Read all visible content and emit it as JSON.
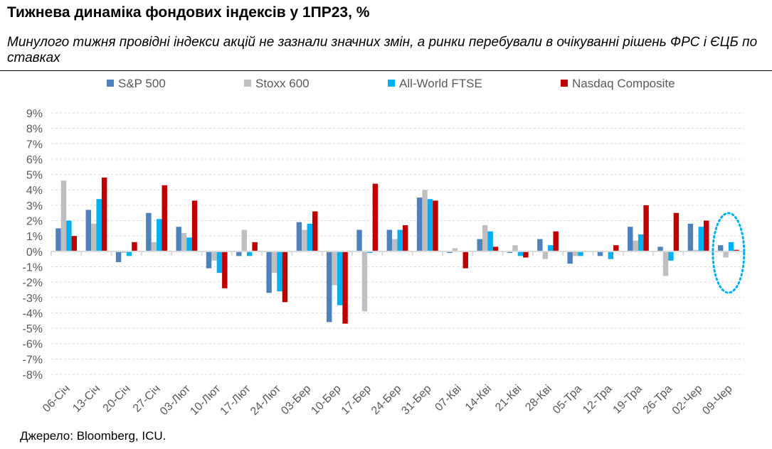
{
  "chart_data": {
    "type": "bar",
    "title": "Тижнева динаміка фондових індексів у 1ПР23, %",
    "subtitle": "Минулого тижня провідні індекси акцій не зазнали значних змін, а ринки перебували в очікуванні рішень ФРС і ЄЦБ по ставках",
    "source": "Джерело: Bloomberg, ICU.",
    "xlabel": "",
    "ylabel": "",
    "ylim": [
      -8,
      9
    ],
    "yticks": [
      9,
      8,
      7,
      6,
      5,
      4,
      3,
      2,
      1,
      0,
      -1,
      -2,
      -3,
      -4,
      -5,
      -6,
      -7,
      -8
    ],
    "ytick_suffix": "%",
    "grid": true,
    "legend_position": "top",
    "categories": [
      "06-Січ",
      "13-Січ",
      "20-Січ",
      "27-Січ",
      "03-Лют",
      "10-Лют",
      "17-Лют",
      "24-Лют",
      "03-Бер",
      "10-Бер",
      "17-Бер",
      "24-Бер",
      "31-Бер",
      "07-Кві",
      "14-Кві",
      "21-Кві",
      "28-Кві",
      "05-Тра",
      "12-Тра",
      "19-Тра",
      "26-Тра",
      "02-Чер",
      "09-Чер"
    ],
    "series": [
      {
        "name": "S&P 500",
        "color": "#4f81bd",
        "values": [
          1.5,
          2.7,
          -0.7,
          2.5,
          1.6,
          -1.1,
          -0.3,
          -2.7,
          1.9,
          -4.6,
          1.4,
          1.4,
          3.5,
          -0.1,
          0.8,
          -0.1,
          0.8,
          -0.8,
          -0.3,
          1.6,
          0.3,
          1.8,
          0.4
        ]
      },
      {
        "name": "Stoxx 600",
        "color": "#bfbfbf",
        "values": [
          4.6,
          1.8,
          -0.1,
          0.6,
          1.2,
          -0.6,
          1.4,
          -1.4,
          1.4,
          -2.2,
          -3.9,
          0.8,
          4.0,
          0.2,
          1.7,
          0.4,
          -0.5,
          -0.3,
          0.0,
          0.7,
          -1.6,
          0.1,
          -0.4
        ]
      },
      {
        "name": "All-World FTSE",
        "color": "#00b0f0",
        "values": [
          2.0,
          3.4,
          -0.3,
          2.1,
          0.9,
          -1.4,
          -0.3,
          -2.6,
          1.8,
          -3.5,
          -0.1,
          1.4,
          3.4,
          0.0,
          1.3,
          -0.3,
          0.4,
          -0.3,
          -0.5,
          1.1,
          -0.6,
          1.6,
          0.6
        ]
      },
      {
        "name": "Nasdaq Composite",
        "color": "#c00000",
        "values": [
          1.0,
          4.8,
          0.6,
          4.3,
          3.3,
          -2.4,
          0.6,
          -3.3,
          2.6,
          -4.7,
          4.4,
          1.7,
          3.3,
          -1.1,
          0.3,
          -0.4,
          1.3,
          0.0,
          0.4,
          3.0,
          2.5,
          2.0,
          0.1
        ]
      }
    ],
    "annotations": [
      {
        "type": "dotted-ellipse",
        "category": "09-Чер",
        "color": "#00b0f0"
      }
    ]
  }
}
